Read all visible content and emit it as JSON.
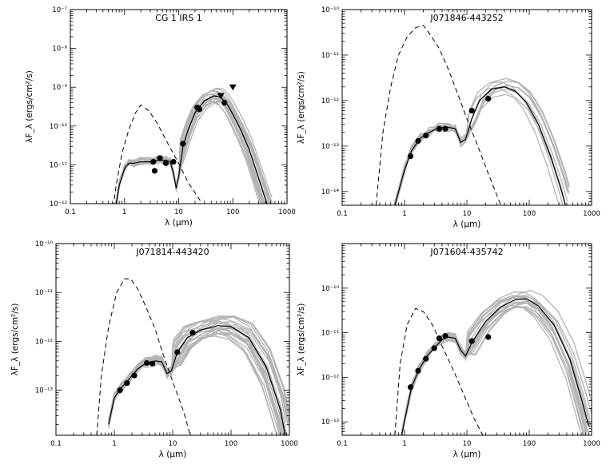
{
  "chart_data": [
    {
      "type": "line",
      "title": "CG 1 IRS 1",
      "xlabel": "λ (μm)",
      "ylabel": "λF_λ (ergs/cm²/s)",
      "xscale": "log",
      "yscale": "log",
      "xlim": [
        0.1,
        1000
      ],
      "ylim": [
        1e-12,
        1e-07
      ],
      "x_ticks": [
        "0.1",
        "1",
        "10",
        "100",
        "1000"
      ],
      "y_ticks": [
        "10⁻¹²",
        "10⁻¹¹",
        "10⁻¹⁰",
        "10⁻⁹",
        "10⁻⁸",
        "10⁻⁷"
      ],
      "y_tick_values": [
        1e-12,
        1e-11,
        1e-10,
        1e-09,
        1e-08,
        1e-07
      ],
      "grid": false,
      "fit_count": 20,
      "points": [
        {
          "x": 3.4,
          "y": 1.2e-11
        },
        {
          "x": 3.6,
          "y": 7e-12
        },
        {
          "x": 4.5,
          "y": 1.5e-11
        },
        {
          "x": 5.8,
          "y": 1.1e-11
        },
        {
          "x": 8.0,
          "y": 1.2e-11
        },
        {
          "x": 12,
          "y": 3.5e-11
        },
        {
          "x": 22,
          "y": 3e-10
        },
        {
          "x": 24,
          "y": 2.7e-10
        },
        {
          "x": 70,
          "y": 4e-10
        }
      ],
      "upper_limits": [
        {
          "x": 60,
          "y": 6e-10
        },
        {
          "x": 100,
          "y": 1e-09
        }
      ],
      "stellar": [
        [
          0.55,
          2e-13
        ],
        [
          0.7,
          3e-12
        ],
        [
          0.9,
          2e-11
        ],
        [
          1.2,
          8e-11
        ],
        [
          1.6,
          2.2e-10
        ],
        [
          2.0,
          3.5e-10
        ],
        [
          2.8,
          2.5e-10
        ],
        [
          4,
          1.2e-10
        ],
        [
          6,
          4e-11
        ],
        [
          10,
          1.1e-11
        ],
        [
          15,
          3.5e-12
        ],
        [
          25,
          1.2e-12
        ]
      ],
      "best_fit": [
        [
          0.65,
          5e-13
        ],
        [
          0.8,
          3e-12
        ],
        [
          1.0,
          8e-12
        ],
        [
          1.2,
          1.1e-11
        ],
        [
          1.5,
          1.1e-11
        ],
        [
          2,
          1.2e-11
        ],
        [
          3,
          1.2e-11
        ],
        [
          4,
          1.3e-11
        ],
        [
          5,
          1.3e-11
        ],
        [
          6,
          1.3e-11
        ],
        [
          7,
          1.2e-11
        ],
        [
          8,
          6e-12
        ],
        [
          9,
          2.5e-12
        ],
        [
          10,
          5e-12
        ],
        [
          12,
          3e-11
        ],
        [
          15,
          8e-11
        ],
        [
          20,
          2.2e-10
        ],
        [
          30,
          4.5e-10
        ],
        [
          45,
          6e-10
        ],
        [
          60,
          5.5e-10
        ],
        [
          80,
          3.5e-10
        ],
        [
          100,
          2e-10
        ],
        [
          140,
          8e-11
        ],
        [
          200,
          2.5e-11
        ],
        [
          280,
          6e-12
        ],
        [
          400,
          1.3e-12
        ],
        [
          480,
          6e-13
        ]
      ]
    },
    {
      "type": "line",
      "title": "J071846-443252",
      "xlabel": "λ (μm)",
      "ylabel": "λF_λ (ergs/cm²/s)",
      "xscale": "log",
      "yscale": "log",
      "xlim": [
        0.1,
        1000
      ],
      "ylim": [
        5e-15,
        1e-10
      ],
      "x_ticks": [
        "0.1",
        "1",
        "10",
        "100",
        "1000"
      ],
      "y_ticks": [
        "10⁻¹⁴",
        "10⁻¹³",
        "10⁻¹²",
        "10⁻¹¹",
        "10⁻¹⁰"
      ],
      "y_tick_values": [
        1e-14,
        1e-13,
        1e-12,
        1e-11,
        1e-10
      ],
      "grid": false,
      "fit_count": 10,
      "points": [
        {
          "x": 1.25,
          "y": 6e-14
        },
        {
          "x": 1.65,
          "y": 1.3e-13
        },
        {
          "x": 2.2,
          "y": 1.7e-13
        },
        {
          "x": 3.6,
          "y": 2.4e-13
        },
        {
          "x": 4.5,
          "y": 2.4e-13
        },
        {
          "x": 12,
          "y": 6e-13
        },
        {
          "x": 22,
          "y": 1.1e-12
        }
      ],
      "upper_limits": [],
      "stellar": [
        [
          0.35,
          5e-15
        ],
        [
          0.45,
          2e-13
        ],
        [
          0.6,
          2e-12
        ],
        [
          0.8,
          1e-11
        ],
        [
          1.1,
          2.5e-11
        ],
        [
          1.5,
          4e-11
        ],
        [
          2.0,
          4.5e-11
        ],
        [
          2.5,
          3e-11
        ],
        [
          3.5,
          1.5e-11
        ],
        [
          5,
          5e-12
        ],
        [
          7,
          1.5e-12
        ],
        [
          10,
          4e-13
        ],
        [
          15,
          1e-13
        ],
        [
          22,
          2.5e-14
        ],
        [
          35,
          5e-15
        ]
      ],
      "best_fit": [
        [
          0.7,
          5e-15
        ],
        [
          1.0,
          3e-14
        ],
        [
          1.3,
          8e-14
        ],
        [
          1.8,
          1.5e-13
        ],
        [
          2.5,
          2e-13
        ],
        [
          3.5,
          2.5e-13
        ],
        [
          5,
          2.6e-13
        ],
        [
          6.5,
          2.4e-13
        ],
        [
          8,
          1.2e-13
        ],
        [
          9.5,
          1.4e-13
        ],
        [
          12,
          4e-13
        ],
        [
          16,
          1e-12
        ],
        [
          25,
          1.8e-12
        ],
        [
          40,
          2e-12
        ],
        [
          60,
          1.6e-12
        ],
        [
          90,
          9e-13
        ],
        [
          140,
          3e-13
        ],
        [
          220,
          6e-14
        ],
        [
          320,
          1.2e-14
        ],
        [
          380,
          5e-15
        ]
      ]
    },
    {
      "type": "line",
      "title": "J071814-443420",
      "xlabel": "λ (μm)",
      "ylabel": "λF_λ (ergs/cm²/s)",
      "xscale": "log",
      "yscale": "log",
      "xlim": [
        0.1,
        1000
      ],
      "ylim": [
        1.2e-14,
        1e-10
      ],
      "x_ticks": [
        "0.1",
        "1",
        "10",
        "100",
        "1000"
      ],
      "y_ticks": [
        "10⁻¹³",
        "10⁻¹²",
        "10⁻¹¹",
        "10⁻¹⁰"
      ],
      "y_tick_values": [
        1e-13,
        1e-12,
        1e-11,
        1e-10
      ],
      "grid": false,
      "fit_count": 24,
      "points": [
        {
          "x": 1.25,
          "y": 1e-13
        },
        {
          "x": 1.65,
          "y": 1.4e-13
        },
        {
          "x": 2.2,
          "y": 2e-13
        },
        {
          "x": 3.6,
          "y": 3.6e-13
        },
        {
          "x": 4.5,
          "y": 3.5e-13
        },
        {
          "x": 12,
          "y": 6e-13
        },
        {
          "x": 22,
          "y": 1.5e-12
        }
      ],
      "upper_limits": [],
      "stellar": [
        [
          0.5,
          1.2e-14
        ],
        [
          0.6,
          2e-13
        ],
        [
          0.8,
          2e-12
        ],
        [
          1.1,
          1e-11
        ],
        [
          1.5,
          1.9e-11
        ],
        [
          1.9,
          1.9e-11
        ],
        [
          2.5,
          1.2e-11
        ],
        [
          3.5,
          5e-12
        ],
        [
          5,
          1.8e-12
        ],
        [
          7,
          5e-13
        ],
        [
          10,
          1.5e-13
        ],
        [
          15,
          4e-14
        ],
        [
          20,
          1.2e-14
        ]
      ],
      "best_fit": [
        [
          0.8,
          2e-14
        ],
        [
          1.0,
          7e-14
        ],
        [
          1.3,
          1.1e-13
        ],
        [
          1.8,
          1.7e-13
        ],
        [
          2.5,
          2.7e-13
        ],
        [
          3.5,
          3.6e-13
        ],
        [
          5,
          4e-13
        ],
        [
          6.5,
          3.8e-13
        ],
        [
          8,
          2.2e-13
        ],
        [
          9.5,
          2.5e-13
        ],
        [
          12,
          6e-13
        ],
        [
          18,
          1.2e-12
        ],
        [
          30,
          1.7e-12
        ],
        [
          60,
          2.1e-12
        ],
        [
          100,
          2e-12
        ],
        [
          200,
          1.2e-12
        ],
        [
          400,
          3e-13
        ],
        [
          700,
          4e-14
        ],
        [
          850,
          1.2e-14
        ]
      ]
    },
    {
      "type": "line",
      "title": "J071604-435742",
      "xlabel": "λ (μm)",
      "ylabel": "λF_λ (ergs/cm²/s)",
      "xscale": "log",
      "yscale": "log",
      "xlim": [
        0.1,
        1000
      ],
      "ylim": [
        5e-14,
        1e-09
      ],
      "x_ticks": [
        "0.1",
        "1",
        "10",
        "100",
        "1000"
      ],
      "y_ticks": [
        "10⁻¹³",
        "10⁻¹²",
        "10⁻¹¹",
        "10⁻¹⁰"
      ],
      "y_tick_values": [
        1e-13,
        1e-12,
        1e-11,
        1e-10
      ],
      "grid": false,
      "fit_count": 18,
      "points": [
        {
          "x": 1.25,
          "y": 6e-13
        },
        {
          "x": 1.65,
          "y": 1.4e-12
        },
        {
          "x": 2.2,
          "y": 2.6e-12
        },
        {
          "x": 3.0,
          "y": 4.5e-12
        },
        {
          "x": 3.6,
          "y": 7.5e-12
        },
        {
          "x": 4.5,
          "y": 8.5e-12
        },
        {
          "x": 12,
          "y": 6.5e-12
        },
        {
          "x": 22,
          "y": 8e-12
        }
      ],
      "upper_limits": [],
      "stellar": [
        [
          0.7,
          5e-14
        ],
        [
          0.85,
          2e-12
        ],
        [
          1.1,
          1.5e-11
        ],
        [
          1.5,
          3.5e-11
        ],
        [
          2.0,
          3e-11
        ],
        [
          2.8,
          1.5e-11
        ],
        [
          4,
          5e-12
        ],
        [
          6,
          1.5e-12
        ],
        [
          9,
          4e-13
        ],
        [
          13,
          1.2e-13
        ],
        [
          18,
          5e-14
        ]
      ],
      "best_fit": [
        [
          0.9,
          5e-14
        ],
        [
          1.1,
          2e-13
        ],
        [
          1.3,
          6e-13
        ],
        [
          1.7,
          1.5e-12
        ],
        [
          2.3,
          3e-12
        ],
        [
          3,
          4.5e-12
        ],
        [
          4,
          7e-12
        ],
        [
          5,
          8e-12
        ],
        [
          6.5,
          7.5e-12
        ],
        [
          8,
          4e-12
        ],
        [
          9.5,
          3e-12
        ],
        [
          12,
          6e-12
        ],
        [
          20,
          1.8e-11
        ],
        [
          35,
          3.8e-11
        ],
        [
          60,
          5.5e-11
        ],
        [
          90,
          5.8e-11
        ],
        [
          140,
          4e-11
        ],
        [
          250,
          1.5e-11
        ],
        [
          450,
          2.5e-12
        ],
        [
          700,
          3e-13
        ],
        [
          900,
          8e-14
        ]
      ]
    }
  ]
}
